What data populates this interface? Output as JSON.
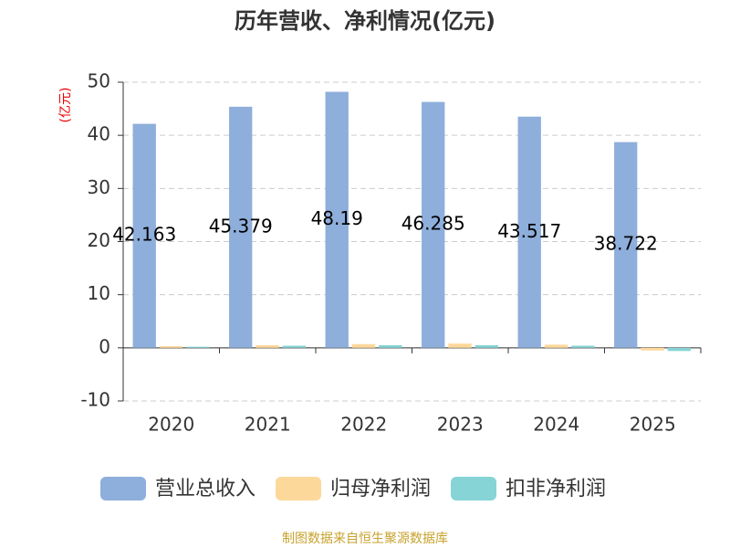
{
  "chart_data": {
    "type": "bar",
    "title": "历年营收、净利情况(亿元)",
    "y_label": "(亿元)",
    "source": "制图数据来自恒生聚源数据库",
    "categories": [
      "2020",
      "2021",
      "2022",
      "2023",
      "2024",
      "2025"
    ],
    "series": [
      {
        "name": "营业总收入",
        "color": "#8eaedb",
        "values": [
          42.163,
          45.379,
          48.19,
          46.285,
          43.517,
          38.722
        ]
      },
      {
        "name": "归母净利润",
        "color": "#fdd89b",
        "values": [
          0.3,
          0.5,
          0.7,
          0.8,
          0.6,
          -0.5
        ]
      },
      {
        "name": "扣非净利润",
        "color": "#86d4d6",
        "values": [
          0.2,
          0.4,
          0.5,
          0.5,
          0.4,
          -0.6
        ]
      }
    ],
    "ylim": [
      -10,
      50
    ],
    "yticks": [
      -10,
      0,
      10,
      20,
      30,
      40,
      50
    ],
    "grid": true
  }
}
